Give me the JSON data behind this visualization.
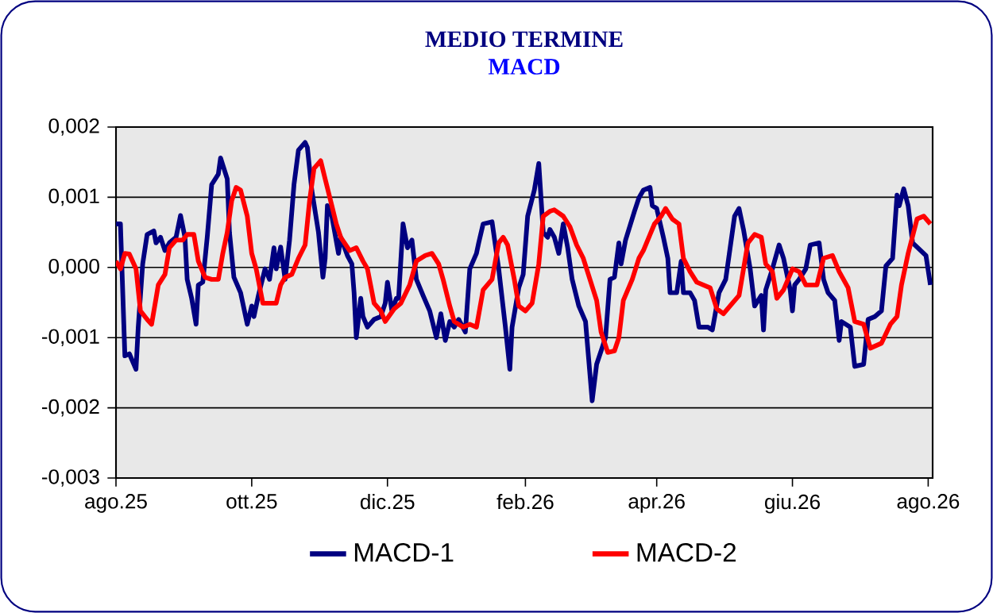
{
  "chart_data": {
    "type": "line",
    "title": "MEDIO TERMINE",
    "subtitle": "MACD",
    "xlim": [
      "2025-08-01",
      "2026-08-03"
    ],
    "xticks": [
      {
        "value": "2025-08-01",
        "label": "ago.25"
      },
      {
        "value": "2025-10-01",
        "label": "ott.25"
      },
      {
        "value": "2025-12-01",
        "label": "dic.25"
      },
      {
        "value": "2026-02-01",
        "label": "feb.26"
      },
      {
        "value": "2026-04-01",
        "label": "apr.26"
      },
      {
        "value": "2026-06-01",
        "label": "giu.26"
      },
      {
        "value": "2026-08-01",
        "label": "ago.26"
      }
    ],
    "ylim": [
      -0.003,
      0.002
    ],
    "yticks": [
      {
        "value": -0.003,
        "label": "-0,003"
      },
      {
        "value": -0.002,
        "label": "-0,002"
      },
      {
        "value": -0.001,
        "label": "-0,001"
      },
      {
        "value": 0,
        "label": "0,000"
      },
      {
        "value": 0.001,
        "label": "0,001"
      },
      {
        "value": 0.002,
        "label": "0,002"
      }
    ],
    "grid": "y",
    "legend": "bottom",
    "series": [
      {
        "name": "MACD-1",
        "color": "#000080",
        "x": [
          "2025-08-01",
          "2025-08-03",
          "2025-08-05",
          "2025-08-07",
          "2025-08-10",
          "2025-08-11",
          "2025-08-13",
          "2025-08-15",
          "2025-08-18",
          "2025-08-19",
          "2025-08-21",
          "2025-08-23",
          "2025-08-25",
          "2025-08-28",
          "2025-08-30",
          "2025-09-01",
          "2025-09-02",
          "2025-09-04",
          "2025-09-06",
          "2025-09-07",
          "2025-09-09",
          "2025-09-11",
          "2025-09-13",
          "2025-09-16",
          "2025-09-17",
          "2025-09-20",
          "2025-09-21",
          "2025-09-23",
          "2025-09-26",
          "2025-09-29",
          "2025-10-01",
          "2025-10-02",
          "2025-10-04",
          "2025-10-07",
          "2025-10-09",
          "2025-10-11",
          "2025-10-12",
          "2025-10-14",
          "2025-10-16",
          "2025-10-18",
          "2025-10-20",
          "2025-10-22",
          "2025-10-25",
          "2025-10-26",
          "2025-10-28",
          "2025-10-31",
          "2025-11-02",
          "2025-11-03",
          "2025-11-04",
          "2025-11-06",
          "2025-11-09",
          "2025-11-10",
          "2025-11-13",
          "2025-11-15",
          "2025-11-16",
          "2025-11-17",
          "2025-11-19",
          "2025-11-20",
          "2025-11-22",
          "2025-11-25",
          "2025-11-28",
          "2025-11-30",
          "2025-12-01",
          "2025-12-03",
          "2025-12-05",
          "2025-12-06",
          "2025-12-08",
          "2025-12-10",
          "2025-12-12",
          "2025-12-14",
          "2025-12-17",
          "2025-12-20",
          "2025-12-23",
          "2025-12-25",
          "2025-12-27",
          "2025-12-29",
          "2025-12-31",
          "2026-01-02",
          "2026-01-05",
          "2026-01-07",
          "2026-01-10",
          "2026-01-11",
          "2026-01-13",
          "2026-01-17",
          "2026-01-20",
          "2026-01-23",
          "2026-01-25",
          "2026-01-26",
          "2026-01-29",
          "2026-01-31",
          "2026-02-02",
          "2026-02-05",
          "2026-02-07",
          "2026-02-09",
          "2026-02-11",
          "2026-02-12",
          "2026-02-14",
          "2026-02-16",
          "2026-02-18",
          "2026-02-20",
          "2026-02-22",
          "2026-02-25",
          "2026-02-28",
          "2026-03-03",
          "2026-03-05",
          "2026-03-09",
          "2026-03-11",
          "2026-03-13",
          "2026-03-15",
          "2026-03-16",
          "2026-03-18",
          "2026-03-22",
          "2026-03-24",
          "2026-03-26",
          "2026-03-29",
          "2026-03-30",
          "2026-04-01",
          "2026-04-04",
          "2026-04-06",
          "2026-04-07",
          "2026-04-10",
          "2026-04-12",
          "2026-04-13",
          "2026-04-16",
          "2026-04-18",
          "2026-04-20",
          "2026-04-24",
          "2026-04-26",
          "2026-04-29",
          "2026-05-02",
          "2026-05-06",
          "2026-05-08",
          "2026-05-10",
          "2026-05-13",
          "2026-05-15",
          "2026-05-18",
          "2026-05-19",
          "2026-05-20",
          "2026-05-23",
          "2026-05-26",
          "2026-05-28",
          "2026-05-31",
          "2026-06-01",
          "2026-06-02",
          "2026-06-04",
          "2026-06-07",
          "2026-06-09",
          "2026-06-13",
          "2026-06-15",
          "2026-06-17",
          "2026-06-20",
          "2026-06-22",
          "2026-06-23",
          "2026-06-27",
          "2026-06-29",
          "2026-07-03",
          "2026-07-05",
          "2026-07-08",
          "2026-07-11",
          "2026-07-13",
          "2026-07-16",
          "2026-07-18",
          "2026-07-19",
          "2026-07-21",
          "2026-07-23",
          "2026-07-25",
          "2026-07-28",
          "2026-07-31",
          "2026-08-02"
        ],
        "values": [
          0.00062,
          0.00062,
          -0.00126,
          -0.00123,
          -0.00145,
          -0.00085,
          5e-05,
          0.00047,
          0.00052,
          0.00035,
          0.00043,
          0.00024,
          0.00035,
          0.00043,
          0.00074,
          0.00043,
          -0.00017,
          -0.00044,
          -0.00081,
          -0.00025,
          -0.00021,
          0.00043,
          0.00118,
          0.00133,
          0.00156,
          0.00126,
          0.0005,
          -0.00014,
          -0.00036,
          -0.00081,
          -0.00055,
          -0.0007,
          -0.0004,
          -2e-05,
          -0.00017,
          0.00028,
          -2e-05,
          0.00029,
          -0.00017,
          0.00039,
          0.00118,
          0.00167,
          0.00178,
          0.00171,
          0.0011,
          0.0005,
          -0.00014,
          0.00013,
          0.00088,
          0.00073,
          0.0002,
          0.00043,
          0.00017,
          5e-05,
          -0.00036,
          -0.001,
          -0.00044,
          -0.0007,
          -0.00085,
          -0.00074,
          -0.0007,
          -0.00051,
          -0.00021,
          -0.00062,
          -0.00044,
          -0.00044,
          0.00062,
          0.00028,
          0.00039,
          -0.00017,
          -0.0004,
          -0.00062,
          -0.001,
          -0.00066,
          -0.00104,
          -0.00077,
          -0.00085,
          -0.00074,
          -0.00092,
          -2e-05,
          0.0002,
          0.00035,
          0.00062,
          0.00065,
          -2e-05,
          -0.00085,
          -0.00145,
          -0.00085,
          -0.00029,
          -0.0001,
          0.00073,
          0.0011,
          0.00148,
          0.0005,
          0.00043,
          0.00054,
          0.00043,
          0.0002,
          0.00062,
          0.00028,
          -0.00017,
          -0.00055,
          -0.00077,
          -0.0019,
          -0.00138,
          -0.001,
          -0.00017,
          -0.00014,
          0.00035,
          5e-05,
          0.00039,
          0.0008,
          0.00099,
          0.0011,
          0.00114,
          0.00088,
          0.00084,
          0.00043,
          0.00013,
          -0.00036,
          -0.00036,
          9e-05,
          -0.00036,
          -0.00036,
          -0.00047,
          -0.00085,
          -0.00085,
          -0.00089,
          -0.00036,
          -0.00017,
          0.00073,
          0.00084,
          0.00054,
          -2e-05,
          -0.00055,
          -0.0004,
          -0.00089,
          -0.00032,
          -2e-05,
          0.00032,
          0.00013,
          -0.00032,
          -0.00062,
          -0.00025,
          -0.00017,
          -2e-05,
          0.00032,
          0.00035,
          -0.00017,
          -0.00036,
          -0.00047,
          -0.00104,
          -0.00077,
          -0.00085,
          -0.00141,
          -0.00138,
          -0.00074,
          -0.0007,
          -0.00062,
          2e-05,
          0.00013,
          0.00103,
          0.00088,
          0.00112,
          0.00088,
          0.00035,
          0.00026,
          0.00017,
          -0.00025
        ]
      },
      {
        "name": "MACD-2",
        "color": "#ff0000",
        "x": [
          "2025-08-01",
          "2025-08-03",
          "2025-08-05",
          "2025-08-07",
          "2025-08-10",
          "2025-08-12",
          "2025-08-15",
          "2025-08-17",
          "2025-08-19",
          "2025-08-20",
          "2025-08-23",
          "2025-08-25",
          "2025-08-28",
          "2025-08-31",
          "2025-09-02",
          "2025-09-05",
          "2025-09-07",
          "2025-09-10",
          "2025-09-13",
          "2025-09-16",
          "2025-09-18",
          "2025-09-20",
          "2025-09-22",
          "2025-09-24",
          "2025-09-26",
          "2025-09-29",
          "2025-10-01",
          "2025-10-03",
          "2025-10-06",
          "2025-10-08",
          "2025-10-12",
          "2025-10-14",
          "2025-10-16",
          "2025-10-19",
          "2025-10-22",
          "2025-10-25",
          "2025-10-27",
          "2025-10-29",
          "2025-11-01",
          "2025-11-03",
          "2025-11-06",
          "2025-11-08",
          "2025-11-10",
          "2025-11-14",
          "2025-11-17",
          "2025-11-20",
          "2025-11-22",
          "2025-11-25",
          "2025-11-28",
          "2025-11-30",
          "2025-12-04",
          "2025-12-07",
          "2025-12-11",
          "2025-12-14",
          "2025-12-18",
          "2025-12-21",
          "2025-12-24",
          "2025-12-26",
          "2025-12-29",
          "2025-12-31",
          "2026-01-04",
          "2026-01-07",
          "2026-01-10",
          "2026-01-13",
          "2026-01-17",
          "2026-01-20",
          "2026-01-22",
          "2026-01-24",
          "2026-01-27",
          "2026-01-29",
          "2026-02-01",
          "2026-02-04",
          "2026-02-07",
          "2026-02-09",
          "2026-02-12",
          "2026-02-14",
          "2026-02-18",
          "2026-02-21",
          "2026-02-24",
          "2026-02-27",
          "2026-03-02",
          "2026-03-05",
          "2026-03-07",
          "2026-03-10",
          "2026-03-13",
          "2026-03-15",
          "2026-03-17",
          "2026-03-21",
          "2026-03-24",
          "2026-03-26",
          "2026-03-29",
          "2026-03-31",
          "2026-04-03",
          "2026-04-05",
          "2026-04-08",
          "2026-04-11",
          "2026-04-13",
          "2026-04-16",
          "2026-04-19",
          "2026-04-25",
          "2026-04-28",
          "2026-05-01",
          "2026-05-05",
          "2026-05-08",
          "2026-05-12",
          "2026-05-15",
          "2026-05-18",
          "2026-05-20",
          "2026-05-23",
          "2026-05-25",
          "2026-05-28",
          "2026-06-01",
          "2026-06-04",
          "2026-06-07",
          "2026-06-12",
          "2026-06-15",
          "2026-06-19",
          "2026-06-22",
          "2026-06-26",
          "2026-06-29",
          "2026-07-03",
          "2026-07-06",
          "2026-07-11",
          "2026-07-15",
          "2026-07-18",
          "2026-07-20",
          "2026-07-23",
          "2026-07-27",
          "2026-07-30",
          "2026-08-02"
        ],
        "values": [
          9e-05,
          -2e-05,
          0.0002,
          0.00019,
          -2e-05,
          -0.00062,
          -0.00074,
          -0.00081,
          -0.00044,
          -0.00025,
          -0.0001,
          0.00028,
          0.00039,
          0.00039,
          0.00047,
          0.00047,
          9e-05,
          -0.00014,
          -0.00017,
          -0.00017,
          0.0002,
          0.0005,
          0.00095,
          0.00114,
          0.0011,
          0.00073,
          0.0002,
          -2e-05,
          -0.00051,
          -0.00051,
          -0.00051,
          -0.00025,
          -0.00014,
          -0.0001,
          0.00013,
          0.00032,
          0.00095,
          0.00141,
          0.00152,
          0.00126,
          0.00088,
          0.00062,
          0.00043,
          0.00024,
          0.00028,
          9e-05,
          -2e-05,
          -0.00051,
          -0.00062,
          -0.00077,
          -0.00059,
          -0.00051,
          -0.00025,
          9e-05,
          0.00017,
          0.0002,
          5e-05,
          -0.00017,
          -0.00055,
          -0.00077,
          -0.00085,
          -0.00081,
          -0.00085,
          -0.00032,
          -0.00017,
          0.00035,
          0.00043,
          0.00032,
          -0.00017,
          -0.00055,
          -0.00062,
          -0.00051,
          5e-05,
          0.00073,
          0.0008,
          0.00082,
          0.00073,
          0.00058,
          0.00032,
          0.00013,
          -0.00017,
          -0.00047,
          -0.00092,
          -0.00121,
          -0.00119,
          -0.001,
          -0.00047,
          -0.00017,
          0.00013,
          0.00024,
          0.00047,
          0.00062,
          0.00073,
          0.00084,
          0.00069,
          0.00062,
          0.00013,
          -6e-05,
          -0.00021,
          -0.00029,
          -0.00059,
          -0.00066,
          -0.00051,
          -0.0004,
          0.00035,
          0.00047,
          0.00043,
          5e-05,
          -6e-05,
          -0.00044,
          -0.00032,
          -2e-05,
          -6e-05,
          -0.00025,
          -0.00025,
          0.00013,
          0.00017,
          -6e-05,
          -0.00029,
          -0.00077,
          -0.00081,
          -0.00115,
          -0.00108,
          -0.00081,
          -0.0007,
          -0.00025,
          0.0002,
          0.00069,
          0.00073,
          0.00062
        ]
      }
    ]
  }
}
